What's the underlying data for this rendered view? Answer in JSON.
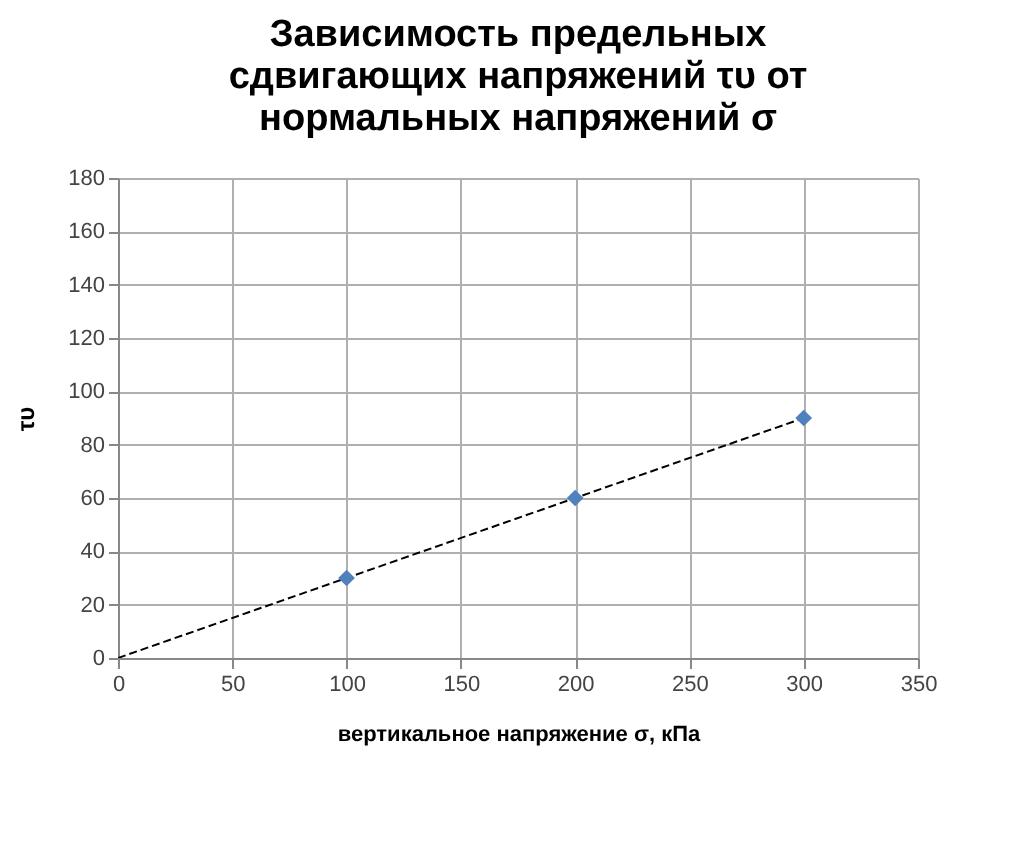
{
  "chart_data": {
    "type": "scatter",
    "title": "Зависимость предельных сдвигающих напряжений τυ от нормальных напряжений σ",
    "xlabel": "вертикальное напряжение σ, кПа",
    "ylabel": "τυ",
    "x": [
      100,
      200,
      300
    ],
    "series": [
      {
        "color": "#4f81bd",
        "values": [
          30,
          60,
          90
        ],
        "marker": "diamond"
      },
      {
        "type": "line",
        "color": "#000000",
        "x": [
          0,
          300
        ],
        "values": [
          0,
          90
        ],
        "line_style": "dashed",
        "marker": "none"
      }
    ],
    "xlim": [
      0,
      350
    ],
    "xticks": [
      0,
      50,
      100,
      150,
      200,
      250,
      300,
      350
    ],
    "ylim": [
      0,
      180
    ],
    "yticks": [
      0,
      20,
      40,
      60,
      80,
      100,
      120,
      140,
      160,
      180
    ],
    "grid": true
  }
}
